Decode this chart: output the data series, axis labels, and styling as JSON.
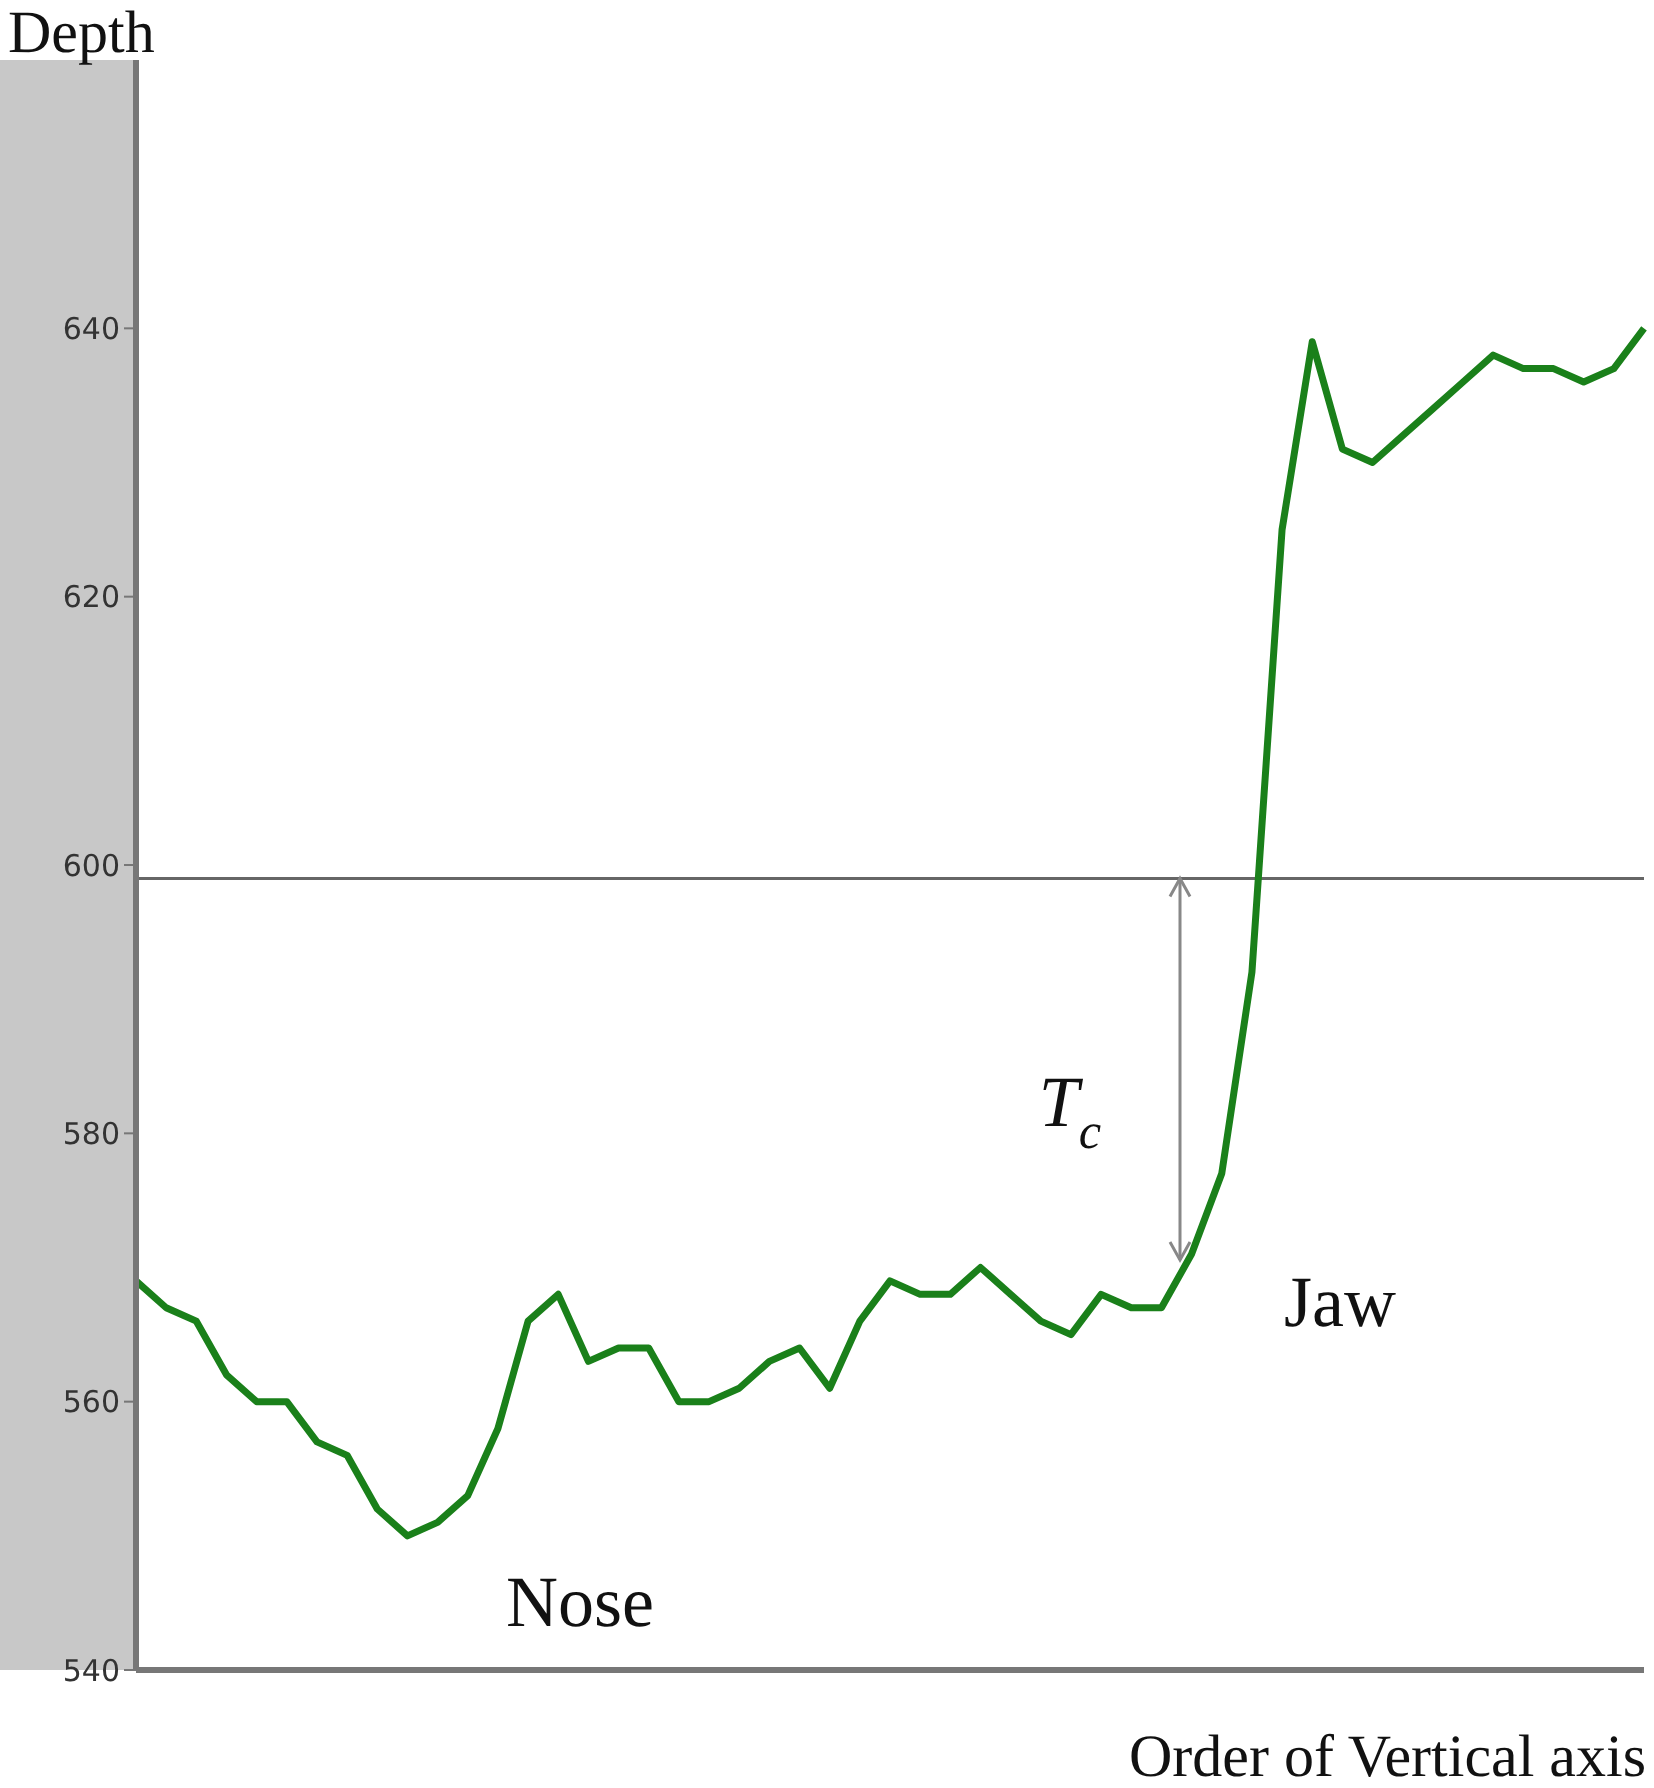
{
  "chart_data": {
    "type": "line",
    "ylabel": "Depth",
    "xlabel": "Order of Vertical axis",
    "categories": [
      null,
      null,
      null,
      null,
      null,
      null,
      null,
      null,
      null,
      null,
      null,
      null,
      null,
      null,
      null,
      null,
      null,
      null,
      null,
      null,
      null,
      null,
      null,
      null,
      null,
      null,
      null,
      null,
      null,
      null,
      null,
      null,
      null,
      null,
      null,
      null,
      null,
      null,
      null,
      null,
      null,
      null,
      null,
      null,
      null,
      null,
      null,
      null,
      null,
      null,
      null
    ],
    "series": [
      {
        "color": "#1a801a",
        "values": [
          569,
          567,
          566,
          562,
          560,
          560,
          557,
          556,
          552,
          550,
          551,
          553,
          558,
          566,
          568,
          563,
          564,
          564,
          560,
          560,
          561,
          563,
          564,
          561,
          566,
          569,
          568,
          568,
          570,
          568,
          566,
          565,
          568,
          567,
          567,
          571,
          577,
          592,
          625,
          639,
          631,
          630,
          632,
          634,
          636,
          638,
          637,
          637,
          636,
          637,
          640
        ]
      }
    ],
    "ylim": [
      540,
      660
    ],
    "yticks": [
      540,
      560,
      580,
      600,
      620,
      640
    ],
    "ref_lines": [
      {
        "axis": "y",
        "value": 599,
        "color": "#666666"
      }
    ],
    "annotations": [
      "Nose",
      "Jaw",
      "T$_{c}$"
    ],
    "grid": false,
    "legend": false,
    "marker": "none",
    "line_style": "solid"
  }
}
